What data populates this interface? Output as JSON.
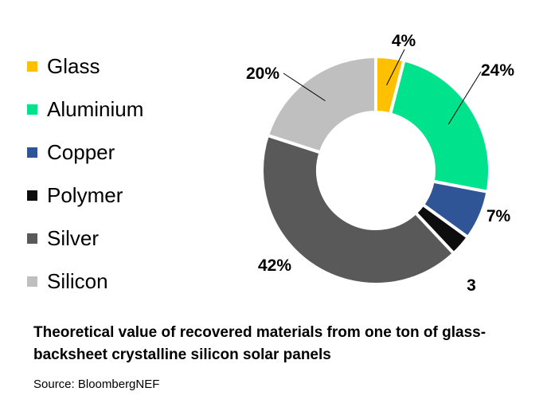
{
  "chart_data": {
    "type": "pie",
    "donut": true,
    "categories": [
      "Glass",
      "Aluminium",
      "Copper",
      "Polymer",
      "Silver",
      "Silicon"
    ],
    "values": [
      4,
      24,
      7,
      3,
      42,
      20
    ],
    "value_labels": [
      "4%",
      "24%",
      "7%",
      "3",
      "42%",
      "20%"
    ],
    "colors": [
      "#FFC000",
      "#00E28C",
      "#2F5597",
      "#0D0D0D",
      "#595959",
      "#BFBFBF"
    ],
    "legend_position": "left",
    "start_angle_deg": 0,
    "direction": "clockwise"
  },
  "caption": "Theoretical value of recovered materials from one ton of glass-backsheet crystalline silicon solar panels",
  "source": "Source: BloombergNEF"
}
